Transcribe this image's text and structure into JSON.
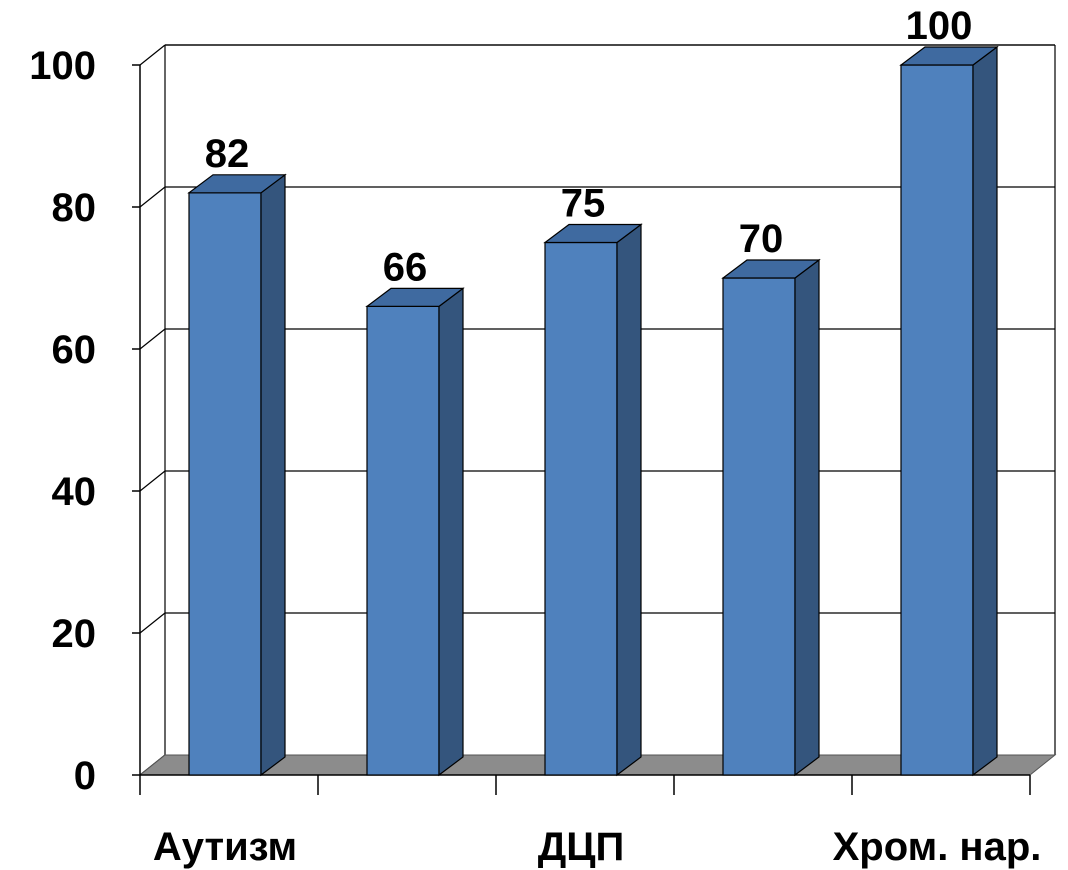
{
  "chart_data": {
    "type": "bar",
    "three_d": true,
    "categories": [
      "Аутизм",
      "",
      "ДЦП",
      "",
      "Хром. нар."
    ],
    "values": [
      82,
      66,
      75,
      70,
      100
    ],
    "data_labels": [
      "82",
      "66",
      "75",
      "70",
      "100"
    ],
    "y_ticks": [
      "0",
      "20",
      "40",
      "60",
      "80",
      "100"
    ],
    "ylim": [
      0,
      100
    ],
    "grid": true,
    "legend": "none",
    "colors": {
      "bar_front": "#4f81bd",
      "bar_side": "#34557d",
      "bar_top": "#3f6aa0",
      "floor": "#8c8c8c",
      "axis": "#000000",
      "grid": "#000000"
    }
  }
}
